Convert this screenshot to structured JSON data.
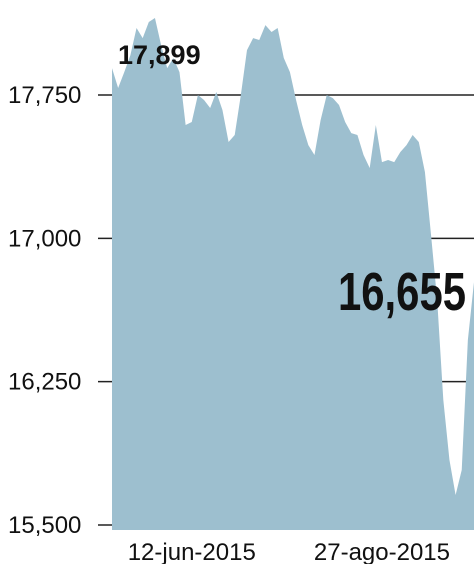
{
  "chart_data": {
    "type": "area",
    "color": "#9dbfcf",
    "categories": [
      null,
      null,
      null,
      null,
      null,
      null,
      null,
      null,
      null,
      null,
      null,
      null,
      null,
      "12-jun-2015",
      null,
      null,
      null,
      null,
      null,
      null,
      null,
      null,
      null,
      null,
      null,
      null,
      null,
      null,
      null,
      null,
      null,
      null,
      null,
      null,
      null,
      null,
      null,
      null,
      null,
      null,
      null,
      null,
      null,
      null,
      "27-ago-2015",
      null,
      null,
      null,
      null,
      null,
      null,
      null,
      null,
      null,
      null,
      null,
      null,
      null,
      null,
      null
    ],
    "values": [
      17891,
      17787,
      17870,
      17959,
      18101,
      18048,
      18132,
      18153,
      18012,
      17891,
      17944,
      17870,
      17593,
      17609,
      17750,
      17724,
      17682,
      17766,
      17672,
      17504,
      17541,
      17750,
      17985,
      18048,
      18038,
      18116,
      18080,
      18101,
      17944,
      17870,
      17724,
      17593,
      17488,
      17436,
      17619,
      17750,
      17734,
      17698,
      17609,
      17551,
      17541,
      17436,
      17368,
      17593,
      17399,
      17410,
      17399,
      17452,
      17488,
      17541,
      17504,
      17347,
      17017,
      16677,
      16154,
      15840,
      15657,
      15788,
      16468,
      16771
    ],
    "ylim": [
      15500,
      18250
    ],
    "yticks": [
      {
        "value": 15500,
        "label": "15,500"
      },
      {
        "value": 16250,
        "label": "16,250"
      },
      {
        "value": 17000,
        "label": "17,000"
      },
      {
        "value": 17750,
        "label": "17,750"
      }
    ],
    "grid": true,
    "annotations": [
      "17,899",
      "16,655"
    ]
  }
}
